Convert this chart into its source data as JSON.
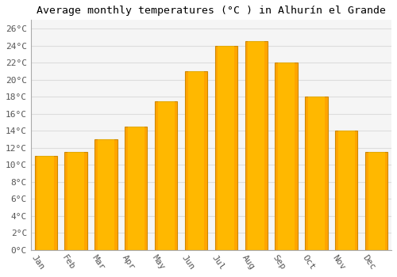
{
  "title": "Average monthly temperatures (°C ) in Alhurín el Grande",
  "months": [
    "Jan",
    "Feb",
    "Mar",
    "Apr",
    "May",
    "Jun",
    "Jul",
    "Aug",
    "Sep",
    "Oct",
    "Nov",
    "Dec"
  ],
  "values": [
    11,
    11.5,
    13,
    14.5,
    17.5,
    21,
    24,
    24.5,
    22,
    18,
    14,
    11.5
  ],
  "bar_color": "#FFA500",
  "bar_edge_color": "#CC8800",
  "bar_face_color": "#FFCC00",
  "background_color": "#FFFFFF",
  "plot_bg_color": "#F5F5F5",
  "grid_color": "#DDDDDD",
  "ytick_labels": [
    "0°C",
    "2°C",
    "4°C",
    "6°C",
    "8°C",
    "10°C",
    "12°C",
    "14°C",
    "16°C",
    "18°C",
    "20°C",
    "22°C",
    "24°C",
    "26°C"
  ],
  "ytick_values": [
    0,
    2,
    4,
    6,
    8,
    10,
    12,
    14,
    16,
    18,
    20,
    22,
    24,
    26
  ],
  "ylim": [
    0,
    27
  ],
  "title_fontsize": 9.5,
  "tick_fontsize": 8,
  "font_family": "monospace"
}
